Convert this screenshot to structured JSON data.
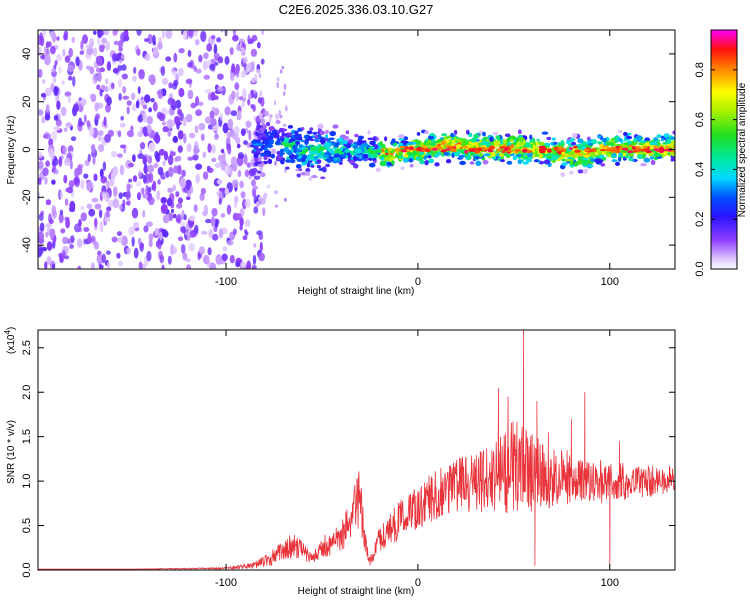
{
  "chart_data": [
    {
      "type": "heatmap",
      "title": "C2E6.2025.336.03.10.G27",
      "xlabel": "Height of straight line (km)",
      "ylabel": "Frequency (Hz)",
      "xlim": [
        -198,
        134
      ],
      "ylim": [
        -50,
        50
      ],
      "xticks": [
        -100,
        0,
        100
      ],
      "yticks": [
        -40,
        -20,
        0,
        20,
        40
      ],
      "colorbar": {
        "label": "Normalized spectral amplitude",
        "range": [
          0,
          0.96
        ],
        "ticks": [
          "0.0",
          "0.2",
          "0.4",
          "0.6",
          "0.8"
        ]
      },
      "features": {
        "noise_region_x": [
          -198,
          -88
        ],
        "signal_band_center_hz": 0,
        "signal_band_halfwidth_hz": 6,
        "peak_amplitude_band_x": [
          -20,
          134
        ]
      }
    },
    {
      "type": "line",
      "xlabel": "Height of straight line (km)",
      "ylabel": "SNR (10 * v/v)",
      "y_multiplier_label": "(x10^4)",
      "xlim": [
        -198,
        134
      ],
      "ylim": [
        0,
        2.7
      ],
      "xticks": [
        -100,
        0,
        100
      ],
      "yticks": [
        "0.0",
        "0.5",
        "1.0",
        "1.5",
        "2.0",
        "2.5"
      ],
      "color": "#e8333a",
      "envelope": {
        "x": [
          -198,
          -150,
          -100,
          -85,
          -75,
          -65,
          -60,
          -55,
          -50,
          -40,
          -35,
          -30,
          -28,
          -25,
          -20,
          -10,
          0,
          10,
          20,
          30,
          40,
          45,
          50,
          55,
          60,
          70,
          80,
          90,
          100,
          110,
          120,
          134
        ],
        "y": [
          0.01,
          0.01,
          0.02,
          0.05,
          0.15,
          0.28,
          0.22,
          0.12,
          0.25,
          0.38,
          0.55,
          0.78,
          0.4,
          0.08,
          0.35,
          0.55,
          0.72,
          0.85,
          0.95,
          1.0,
          1.05,
          1.1,
          1.15,
          1.15,
          1.1,
          1.05,
          1.05,
          1.0,
          0.98,
          1.0,
          1.0,
          1.02
        ],
        "amp": [
          0.0,
          0.0,
          0.01,
          0.04,
          0.1,
          0.14,
          0.1,
          0.06,
          0.12,
          0.18,
          0.25,
          0.4,
          0.15,
          0.05,
          0.15,
          0.22,
          0.25,
          0.28,
          0.3,
          0.35,
          0.4,
          0.45,
          0.55,
          0.5,
          0.45,
          0.35,
          0.3,
          0.25,
          0.25,
          0.2,
          0.18,
          0.15
        ]
      },
      "spikes": [
        {
          "x": 42,
          "y": 2.05
        },
        {
          "x": 55,
          "y": 2.7
        },
        {
          "x": 47,
          "y": 1.95
        },
        {
          "x": 62,
          "y": 1.9
        },
        {
          "x": 80,
          "y": 1.7
        },
        {
          "x": 87,
          "y": 2.0
        },
        {
          "x": 68,
          "y": 1.55
        },
        {
          "x": 100,
          "y": 0.05
        },
        {
          "x": 61,
          "y": 0.05
        },
        {
          "x": 105,
          "y": 1.45
        },
        {
          "x": -32,
          "y": 0.85
        },
        {
          "x": -63,
          "y": 0.32
        }
      ]
    }
  ]
}
